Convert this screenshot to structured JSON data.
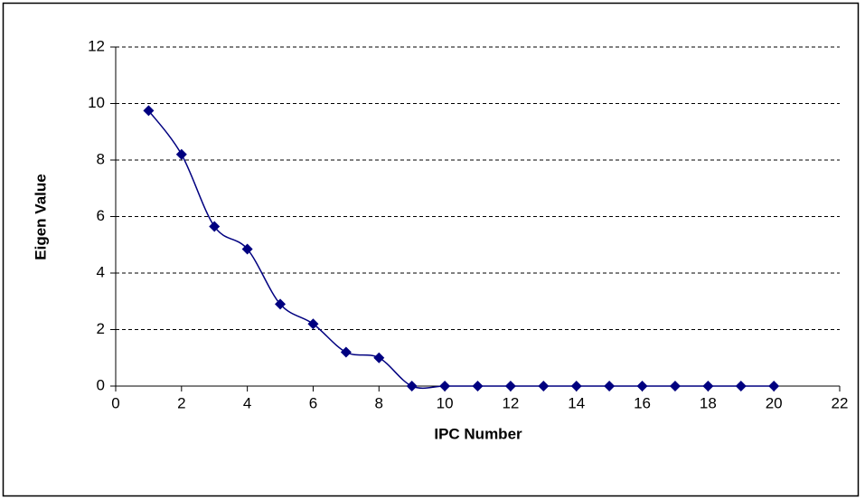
{
  "chart_data": {
    "type": "line",
    "x_label": "IPC Number",
    "y_label": "Eigen Value",
    "series": [
      {
        "color": "#000080",
        "smooth": true,
        "marker": "diamond",
        "x": [
          1,
          2,
          3,
          4,
          5,
          6,
          7,
          8,
          9,
          10,
          11,
          12,
          13,
          14,
          15,
          16,
          17,
          18,
          19,
          20
        ],
        "values": [
          9.75,
          8.2,
          5.65,
          4.85,
          2.9,
          2.2,
          1.2,
          1.0,
          0,
          0,
          0,
          0,
          0,
          0,
          0,
          0,
          0,
          0,
          0,
          0
        ]
      }
    ],
    "xlim": [
      0,
      22
    ],
    "xticks": [
      0,
      2,
      4,
      6,
      8,
      10,
      12,
      14,
      16,
      18,
      20,
      22
    ],
    "ylim": [
      0,
      12
    ],
    "yticks": [
      0,
      2,
      4,
      6,
      8,
      10,
      12
    ],
    "grid": true
  }
}
